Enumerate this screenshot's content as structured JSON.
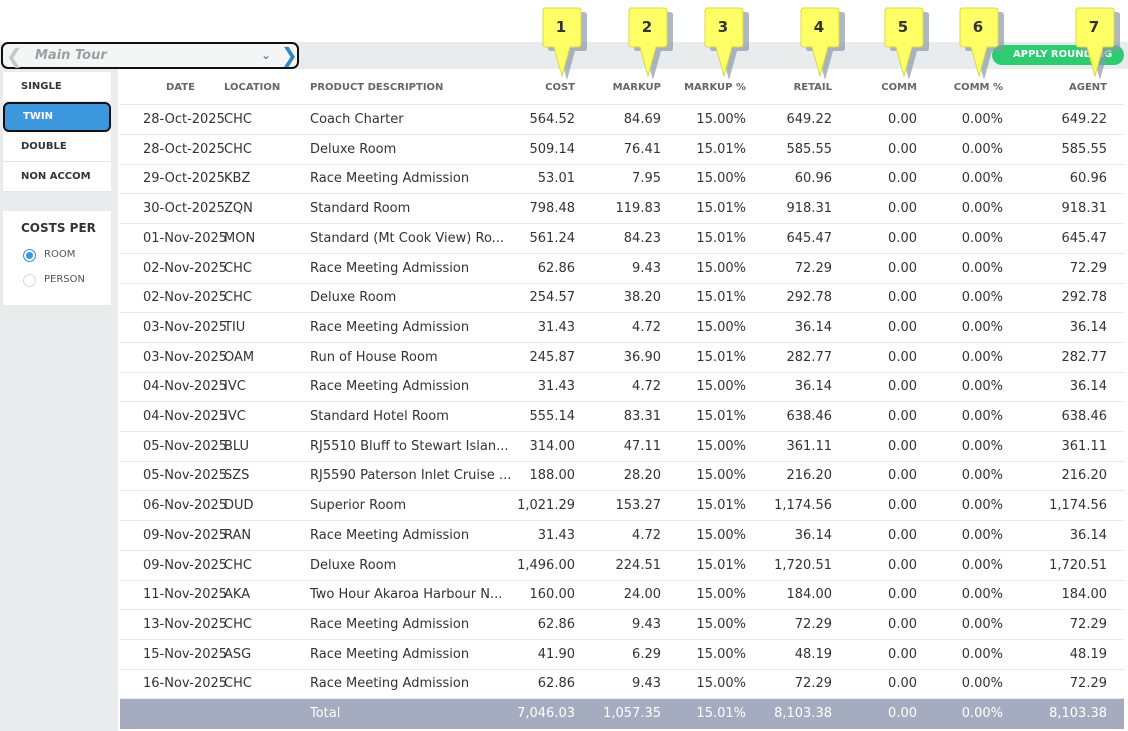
{
  "tour": {
    "name": "Main Tour",
    "prev_icon": "chevron-left-icon",
    "next_icon": "chevron-right-icon",
    "dropdown_icon": "chevron-down-icon"
  },
  "apply_button": {
    "label": "APPLY ROUNDING"
  },
  "room_types": [
    {
      "label": "SINGLE",
      "active": false
    },
    {
      "label": "TWIN",
      "active": true
    },
    {
      "label": "DOUBLE",
      "active": false
    },
    {
      "label": "NON ACCOM",
      "active": false
    }
  ],
  "costs_per": {
    "title": "COSTS PER",
    "options": [
      {
        "label": "ROOM",
        "selected": true
      },
      {
        "label": "PERSON",
        "selected": false
      }
    ]
  },
  "columns": {
    "date": "DATE",
    "location": "LOCATION",
    "description": "PRODUCT DESCRIPTION",
    "cost": "COST",
    "markup": "MARKUP",
    "markup_pct": "MARKUP %",
    "retail": "RETAIL",
    "comm": "COMM",
    "comm_pct": "COMM %",
    "agent": "AGENT"
  },
  "markers": [
    "1",
    "2",
    "3",
    "4",
    "5",
    "6",
    "7"
  ],
  "rows": [
    {
      "date": "28-Oct-2025",
      "location": "CHC",
      "description": "Coach Charter",
      "cost": "564.52",
      "markup": "84.69",
      "markup_pct": "15.00%",
      "retail": "649.22",
      "comm": "0.00",
      "comm_pct": "0.00%",
      "agent": "649.22"
    },
    {
      "date": "28-Oct-2025",
      "location": "CHC",
      "description": "Deluxe Room",
      "cost": "509.14",
      "markup": "76.41",
      "markup_pct": "15.01%",
      "retail": "585.55",
      "comm": "0.00",
      "comm_pct": "0.00%",
      "agent": "585.55"
    },
    {
      "date": "29-Oct-2025",
      "location": "KBZ",
      "description": "Race Meeting Admission",
      "cost": "53.01",
      "markup": "7.95",
      "markup_pct": "15.00%",
      "retail": "60.96",
      "comm": "0.00",
      "comm_pct": "0.00%",
      "agent": "60.96"
    },
    {
      "date": "30-Oct-2025",
      "location": "ZQN",
      "description": "Standard Room",
      "cost": "798.48",
      "markup": "119.83",
      "markup_pct": "15.01%",
      "retail": "918.31",
      "comm": "0.00",
      "comm_pct": "0.00%",
      "agent": "918.31"
    },
    {
      "date": "01-Nov-2025",
      "location": "MON",
      "description": "Standard (Mt Cook View) Ro...",
      "cost": "561.24",
      "markup": "84.23",
      "markup_pct": "15.01%",
      "retail": "645.47",
      "comm": "0.00",
      "comm_pct": "0.00%",
      "agent": "645.47"
    },
    {
      "date": "02-Nov-2025",
      "location": "CHC",
      "description": "Race Meeting Admission",
      "cost": "62.86",
      "markup": "9.43",
      "markup_pct": "15.00%",
      "retail": "72.29",
      "comm": "0.00",
      "comm_pct": "0.00%",
      "agent": "72.29"
    },
    {
      "date": "02-Nov-2025",
      "location": "CHC",
      "description": "Deluxe Room",
      "cost": "254.57",
      "markup": "38.20",
      "markup_pct": "15.01%",
      "retail": "292.78",
      "comm": "0.00",
      "comm_pct": "0.00%",
      "agent": "292.78"
    },
    {
      "date": "03-Nov-2025",
      "location": "TIU",
      "description": "Race Meeting Admission",
      "cost": "31.43",
      "markup": "4.72",
      "markup_pct": "15.00%",
      "retail": "36.14",
      "comm": "0.00",
      "comm_pct": "0.00%",
      "agent": "36.14"
    },
    {
      "date": "03-Nov-2025",
      "location": "OAM",
      "description": "Run of House Room",
      "cost": "245.87",
      "markup": "36.90",
      "markup_pct": "15.01%",
      "retail": "282.77",
      "comm": "0.00",
      "comm_pct": "0.00%",
      "agent": "282.77"
    },
    {
      "date": "04-Nov-2025",
      "location": "IVC",
      "description": "Race Meeting Admission",
      "cost": "31.43",
      "markup": "4.72",
      "markup_pct": "15.00%",
      "retail": "36.14",
      "comm": "0.00",
      "comm_pct": "0.00%",
      "agent": "36.14"
    },
    {
      "date": "04-Nov-2025",
      "location": "IVC",
      "description": "Standard Hotel Room",
      "cost": "555.14",
      "markup": "83.31",
      "markup_pct": "15.01%",
      "retail": "638.46",
      "comm": "0.00",
      "comm_pct": "0.00%",
      "agent": "638.46"
    },
    {
      "date": "05-Nov-2025",
      "location": "BLU",
      "description": "RJ5510 Bluff to Stewart Islan...",
      "cost": "314.00",
      "markup": "47.11",
      "markup_pct": "15.00%",
      "retail": "361.11",
      "comm": "0.00",
      "comm_pct": "0.00%",
      "agent": "361.11"
    },
    {
      "date": "05-Nov-2025",
      "location": "SZS",
      "description": "RJ5590 Paterson Inlet Cruise ...",
      "cost": "188.00",
      "markup": "28.20",
      "markup_pct": "15.00%",
      "retail": "216.20",
      "comm": "0.00",
      "comm_pct": "0.00%",
      "agent": "216.20"
    },
    {
      "date": "06-Nov-2025",
      "location": "DUD",
      "description": "Superior Room",
      "cost": "1,021.29",
      "markup": "153.27",
      "markup_pct": "15.01%",
      "retail": "1,174.56",
      "comm": "0.00",
      "comm_pct": "0.00%",
      "agent": "1,174.56"
    },
    {
      "date": "09-Nov-2025",
      "location": "RAN",
      "description": "Race Meeting Admission",
      "cost": "31.43",
      "markup": "4.72",
      "markup_pct": "15.00%",
      "retail": "36.14",
      "comm": "0.00",
      "comm_pct": "0.00%",
      "agent": "36.14"
    },
    {
      "date": "09-Nov-2025",
      "location": "CHC",
      "description": "Deluxe Room",
      "cost": "1,496.00",
      "markup": "224.51",
      "markup_pct": "15.01%",
      "retail": "1,720.51",
      "comm": "0.00",
      "comm_pct": "0.00%",
      "agent": "1,720.51"
    },
    {
      "date": "11-Nov-2025",
      "location": "AKA",
      "description": "Two Hour Akaroa Harbour N...",
      "cost": "160.00",
      "markup": "24.00",
      "markup_pct": "15.00%",
      "retail": "184.00",
      "comm": "0.00",
      "comm_pct": "0.00%",
      "agent": "184.00"
    },
    {
      "date": "13-Nov-2025",
      "location": "CHC",
      "description": "Race Meeting Admission",
      "cost": "62.86",
      "markup": "9.43",
      "markup_pct": "15.00%",
      "retail": "72.29",
      "comm": "0.00",
      "comm_pct": "0.00%",
      "agent": "72.29"
    },
    {
      "date": "15-Nov-2025",
      "location": "ASG",
      "description": "Race Meeting Admission",
      "cost": "41.90",
      "markup": "6.29",
      "markup_pct": "15.00%",
      "retail": "48.19",
      "comm": "0.00",
      "comm_pct": "0.00%",
      "agent": "48.19"
    },
    {
      "date": "16-Nov-2025",
      "location": "CHC",
      "description": "Race Meeting Admission",
      "cost": "62.86",
      "markup": "9.43",
      "markup_pct": "15.00%",
      "retail": "72.29",
      "comm": "0.00",
      "comm_pct": "0.00%",
      "agent": "72.29"
    }
  ],
  "total": {
    "label": "Total",
    "cost": "7,046.03",
    "markup": "1,057.35",
    "markup_pct": "15.01%",
    "retail": "8,103.38",
    "comm": "0.00",
    "comm_pct": "0.00%",
    "agent": "8,103.38"
  },
  "colors": {
    "accent": "#3d97dc",
    "apply_green": "#2ecc71",
    "marker_yellow": "#ffff66",
    "total_bar": "#a5acbf"
  }
}
